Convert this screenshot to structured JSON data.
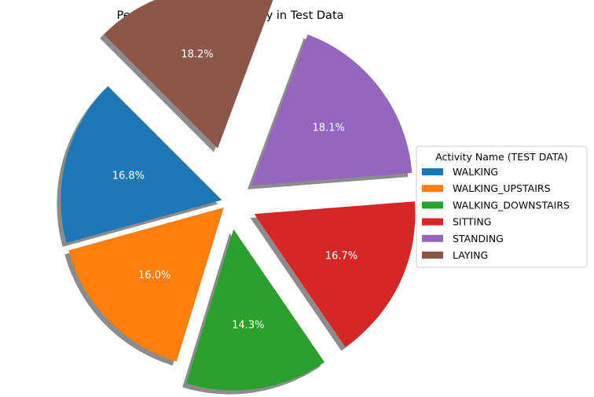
{
  "chart_data": {
    "type": "pie",
    "title": "Percentage of Each Activity in Test Data",
    "shadow": true,
    "exploded": true,
    "start_angle_deg": 135,
    "legend": {
      "title": "Activity Name (TEST DATA)",
      "placement": "center-right"
    },
    "slices": [
      {
        "label": "WALKING",
        "value": 16.8,
        "pct_label": "16.8%",
        "color": "#1f77b4"
      },
      {
        "label": "WALKING_UPSTAIRS",
        "value": 16.0,
        "pct_label": "16.0%",
        "color": "#ff7f0e"
      },
      {
        "label": "WALKING_DOWNSTAIRS",
        "value": 14.3,
        "pct_label": "14.3%",
        "color": "#2ca02c"
      },
      {
        "label": "SITTING",
        "value": 16.7,
        "pct_label": "16.7%",
        "color": "#d62728"
      },
      {
        "label": "STANDING",
        "value": 18.1,
        "pct_label": "18.1%",
        "color": "#9467bd"
      },
      {
        "label": "LAYING",
        "value": 18.2,
        "pct_label": "18.2%",
        "color": "#8c564b"
      }
    ]
  }
}
